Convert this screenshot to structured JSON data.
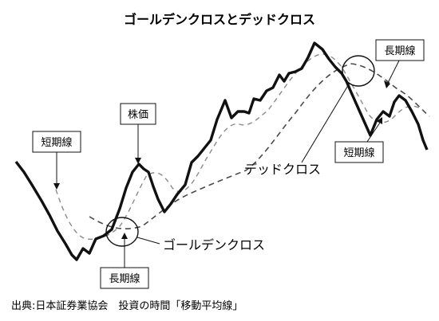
{
  "title": "ゴールデンクロスとデッドクロス",
  "labels": {
    "short_ma_left": "短期線",
    "price": "株価",
    "long_ma_bottom": "長期線",
    "golden_cross": "ゴールデンクロス",
    "dead_cross": "デッドクロス",
    "long_ma_right": "長期線",
    "short_ma_right": "短期線"
  },
  "source": "出典:日本証券業協会　投資の時間「移動平均線」",
  "colors": {
    "price": "#111111",
    "short_ma": "#8a8a8a",
    "long_ma": "#4a4a4a"
  }
}
